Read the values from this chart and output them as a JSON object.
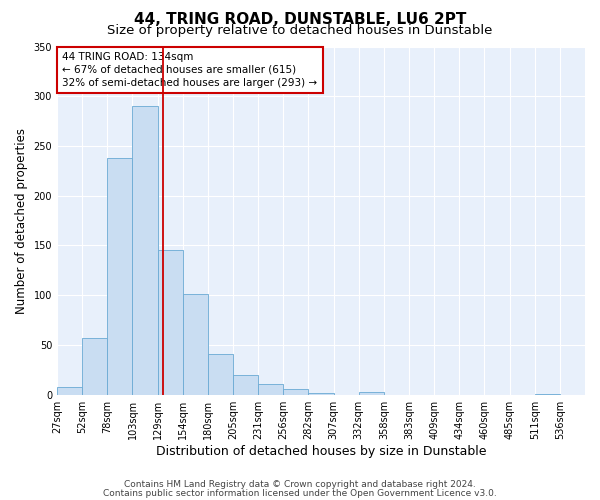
{
  "title": "44, TRING ROAD, DUNSTABLE, LU6 2PT",
  "subtitle": "Size of property relative to detached houses in Dunstable",
  "xlabel": "Distribution of detached houses by size in Dunstable",
  "ylabel": "Number of detached properties",
  "bar_color": "#c9ddf2",
  "bar_edge_color": "#6aaad4",
  "background_color": "#e8f0fb",
  "grid_color": "#ffffff",
  "bin_labels": [
    "27sqm",
    "52sqm",
    "78sqm",
    "103sqm",
    "129sqm",
    "154sqm",
    "180sqm",
    "205sqm",
    "231sqm",
    "256sqm",
    "282sqm",
    "307sqm",
    "332sqm",
    "358sqm",
    "383sqm",
    "409sqm",
    "434sqm",
    "460sqm",
    "485sqm",
    "511sqm",
    "536sqm"
  ],
  "bar_heights": [
    8,
    57,
    238,
    290,
    145,
    101,
    41,
    20,
    11,
    6,
    2,
    0,
    3,
    0,
    0,
    0,
    0,
    0,
    0,
    1,
    0
  ],
  "ylim": [
    0,
    350
  ],
  "yticks": [
    0,
    50,
    100,
    150,
    200,
    250,
    300,
    350
  ],
  "vline_color": "#cc0000",
  "annotation_title": "44 TRING ROAD: 134sqm",
  "annotation_line1": "← 67% of detached houses are smaller (615)",
  "annotation_line2": "32% of semi-detached houses are larger (293) →",
  "annotation_box_color": "#cc0000",
  "footer_line1": "Contains HM Land Registry data © Crown copyright and database right 2024.",
  "footer_line2": "Contains public sector information licensed under the Open Government Licence v3.0.",
  "title_fontsize": 11,
  "subtitle_fontsize": 9.5,
  "xlabel_fontsize": 9,
  "ylabel_fontsize": 8.5,
  "tick_fontsize": 7,
  "annotation_fontsize": 7.5,
  "footer_fontsize": 6.5
}
